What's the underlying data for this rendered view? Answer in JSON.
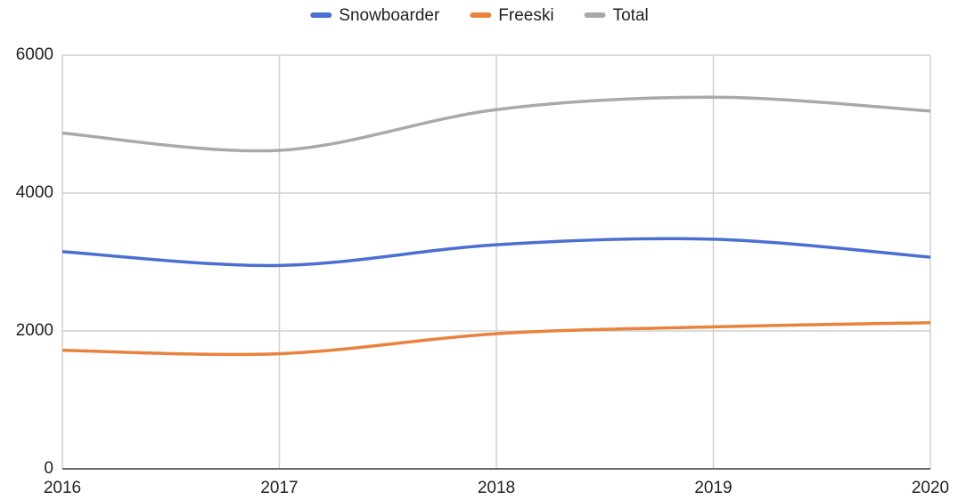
{
  "chart_data": {
    "type": "line",
    "categories": [
      "2016",
      "2017",
      "2018",
      "2019",
      "2020"
    ],
    "series": [
      {
        "name": "Snowboarder",
        "color": "#4a6fd1",
        "values": [
          3150,
          2950,
          3250,
          3330,
          3070
        ]
      },
      {
        "name": "Freeski",
        "color": "#e8823c",
        "values": [
          1720,
          1670,
          1960,
          2060,
          2120
        ]
      },
      {
        "name": "Total",
        "color": "#a9a9a9",
        "values": [
          4870,
          4620,
          5210,
          5390,
          5190
        ]
      }
    ],
    "ylim": [
      0,
      6000
    ],
    "yticks": [
      0,
      2000,
      4000,
      6000
    ],
    "grid": true,
    "legend": "top"
  }
}
